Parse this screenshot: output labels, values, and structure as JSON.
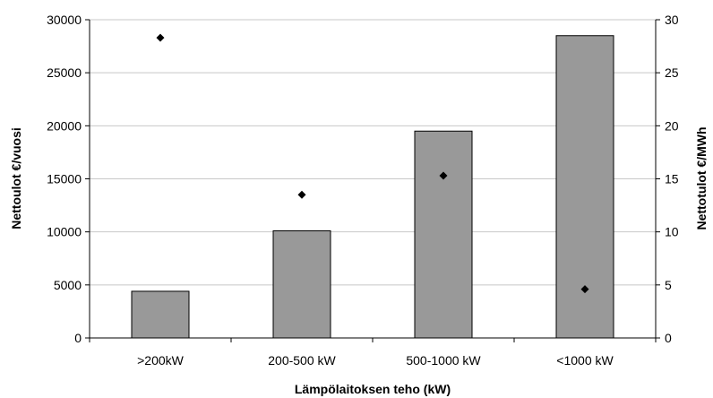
{
  "chart_data": {
    "type": "bar",
    "title": "",
    "xlabel": "Lämpölaitoksen teho (kW)",
    "ylabel": "Nettoulot €/vuosi",
    "y2label": "Nettotulot €/MWh",
    "categories": [
      ">200kW",
      "200-500 kW",
      "500-1000 kW",
      "<1000 kW"
    ],
    "ylim": [
      0,
      30000
    ],
    "y2lim": [
      0,
      30
    ],
    "yticks": [
      "0",
      "5000",
      "10000",
      "15000",
      "20000",
      "25000",
      "30000"
    ],
    "y2ticks": [
      "0",
      "5",
      "10",
      "15",
      "20",
      "25",
      "30"
    ],
    "grid": true,
    "series": [
      {
        "type": "bar",
        "axis": "left",
        "values": [
          4400,
          10100,
          19500,
          28500
        ],
        "color": "#999999"
      },
      {
        "type": "scatter",
        "axis": "right",
        "marker": "diamond",
        "values": [
          28.3,
          13.5,
          15.3,
          4.6
        ],
        "color": "#000000"
      }
    ]
  }
}
